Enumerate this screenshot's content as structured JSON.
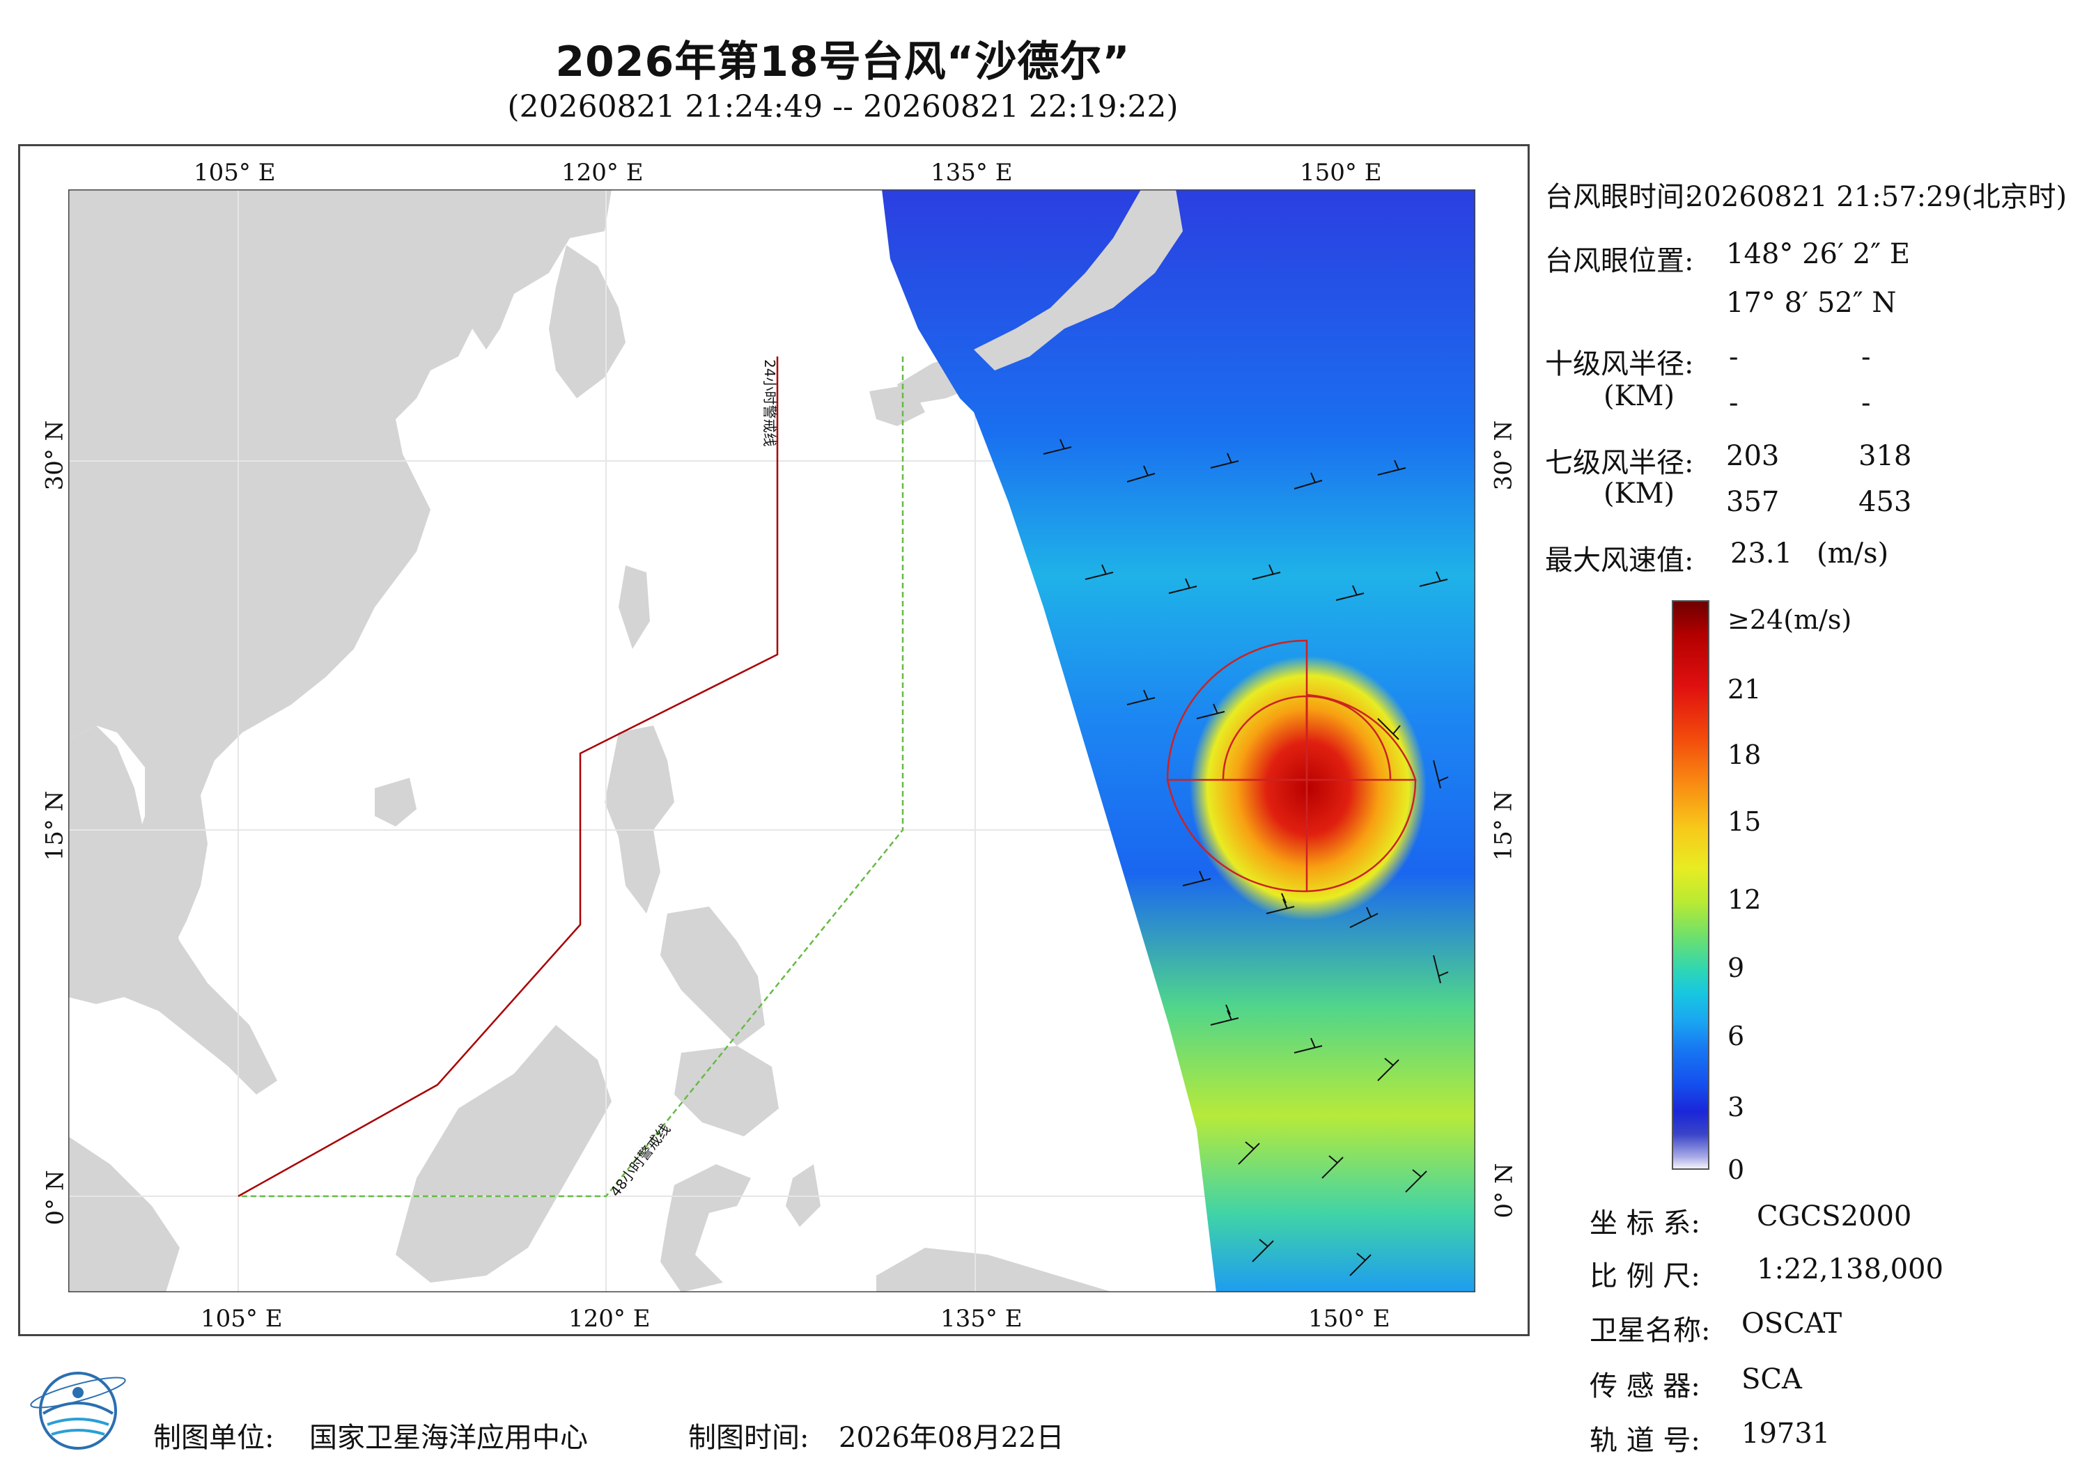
{
  "title": "2026年第18号台风“沙德尔”",
  "subtitle": "(20260821 21:24:49 -- 20260821 22:19:22)",
  "map": {
    "top_lon_labels": [
      "105° E",
      "120° E",
      "135° E",
      "150° E"
    ],
    "bottom_lon_labels": [
      "105° E",
      "120° E",
      "135° E",
      "150° E"
    ],
    "left_lat_labels": [
      "30° N",
      "15° N",
      "0° N"
    ],
    "right_lat_labels": [
      "30° N",
      "15° N",
      "0° N"
    ],
    "warning_line_24": "24小时警戒线",
    "warning_line_48": "48小时警戒线",
    "colors": {
      "land": "#d4d4d4",
      "sea": "#ffffff",
      "line_24": "#a80000",
      "line_48": "#66bb44",
      "wind_circle": "#cc2222"
    }
  },
  "info": {
    "eye_time_label": "台风眼时间:",
    "eye_time_value": "20260821 21:57:29(北京时)",
    "eye_pos_label": "台风眼位置:",
    "eye_lon": "148° 26′ 2″ E",
    "eye_lat": "17° 8′ 52″ N",
    "r10_label": "十级风半径:",
    "r10_unit": "(KM)",
    "r10_values": [
      "-",
      "-",
      "-",
      "-"
    ],
    "r7_label": "七级风半径:",
    "r7_unit": "(KM)",
    "r7_values": [
      "203",
      "318",
      "357",
      "453"
    ],
    "max_wind_label": "最大风速值:",
    "max_wind_value": "23.1",
    "max_wind_unit": "(m/s)"
  },
  "colorbar": {
    "labels": [
      "≥24(m/s)",
      "21",
      "18",
      "15",
      "12",
      "9",
      "6",
      "3",
      "0"
    ]
  },
  "meta": {
    "crs_label": "坐 标 系:",
    "crs_value": "CGCS2000",
    "scale_label": "比 例 尺:",
    "scale_value": "1:22,138,000",
    "satellite_label": "卫星名称:",
    "satellite_value": "OSCAT",
    "sensor_label": "传 感 器:",
    "sensor_value": "SCA",
    "orbit_label": "轨 道 号:",
    "orbit_value": "19731"
  },
  "footer": {
    "maker_label": "制图单位:",
    "maker_value": "国家卫星海洋应用中心",
    "date_label": "制图时间:",
    "date_value": "2026年08月22日"
  }
}
